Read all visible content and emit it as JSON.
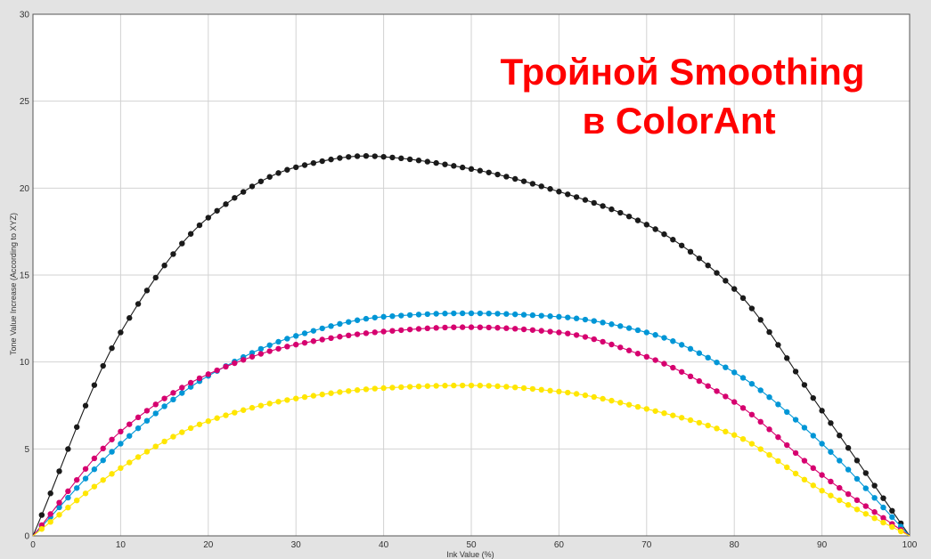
{
  "chart_data": {
    "type": "line",
    "title": "Тройной Smoothing в ColorAnt",
    "title_lines": [
      "Тройной Smoothing",
      "в ColorAnt"
    ],
    "xlabel": "Ink Value (%)",
    "ylabel": "Tone Value Increase (According to XYZ)",
    "xlim": [
      0,
      100
    ],
    "ylim": [
      0,
      30
    ],
    "xticks": [
      0,
      10,
      20,
      30,
      40,
      50,
      60,
      70,
      80,
      90,
      100
    ],
    "yticks": [
      0,
      5,
      10,
      15,
      20,
      25,
      30
    ],
    "grid": true,
    "legend": "none",
    "series": [
      {
        "color": "#1a1a1a",
        "x": [
          0,
          10,
          20,
          30,
          38,
          40,
          50,
          60,
          70,
          80,
          90,
          100
        ],
        "y": [
          0,
          11.7,
          18.3,
          21.2,
          21.85,
          21.8,
          21.1,
          19.8,
          17.9,
          14.2,
          7.2,
          0
        ]
      },
      {
        "color": "#0096d6",
        "x": [
          0,
          10,
          20,
          30,
          40,
          49,
          50,
          60,
          70,
          80,
          90,
          100
        ],
        "y": [
          0,
          5.3,
          9.2,
          11.5,
          12.6,
          12.8,
          12.8,
          12.6,
          11.7,
          9.4,
          5.3,
          0
        ]
      },
      {
        "color": "#d6006f",
        "x": [
          0,
          10,
          20,
          30,
          40,
          49,
          50,
          60,
          70,
          80,
          90,
          100
        ],
        "y": [
          0,
          6.0,
          9.3,
          11.0,
          11.75,
          12.0,
          12.0,
          11.7,
          10.3,
          7.7,
          3.5,
          0
        ]
      },
      {
        "color": "#ffe600",
        "x": [
          0,
          10,
          20,
          30,
          40,
          49,
          50,
          60,
          70,
          80,
          90,
          100
        ],
        "y": [
          0,
          3.9,
          6.6,
          7.9,
          8.5,
          8.65,
          8.65,
          8.3,
          7.3,
          5.8,
          2.6,
          0
        ]
      }
    ]
  }
}
